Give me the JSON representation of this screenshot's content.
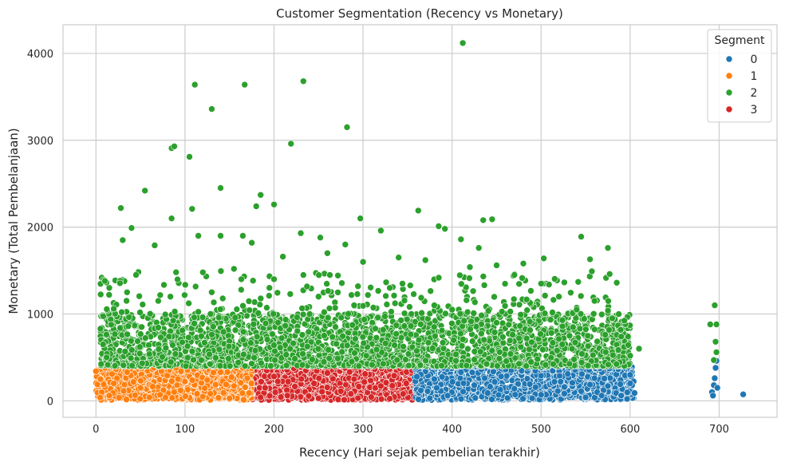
{
  "chart_data": {
    "type": "scatter",
    "title": "Customer Segmentation (Recency vs Monetary)",
    "xlabel": "Recency (Hari sejak pembelian terakhir)",
    "ylabel": "Monetary (Total Pembelanjaan)",
    "xlim": [
      -37,
      765
    ],
    "ylim": [
      -190,
      4330
    ],
    "x_ticks": [
      0,
      100,
      200,
      300,
      400,
      500,
      600,
      700
    ],
    "y_ticks": [
      0,
      1000,
      2000,
      3000,
      4000
    ],
    "grid": true,
    "legend": {
      "title": "Segment",
      "placement": "top-right"
    },
    "series": [
      {
        "name": "0",
        "color": "#1f77b4",
        "points": [
          [
            365,
            120
          ],
          [
            380,
            250
          ],
          [
            395,
            60
          ],
          [
            410,
            330
          ],
          [
            425,
            180
          ],
          [
            440,
            90
          ],
          [
            455,
            280
          ],
          [
            470,
            140
          ],
          [
            485,
            380
          ],
          [
            500,
            70
          ],
          [
            515,
            220
          ],
          [
            530,
            310
          ],
          [
            545,
            110
          ],
          [
            560,
            260
          ],
          [
            575,
            170
          ],
          [
            590,
            60
          ],
          [
            600,
            200
          ],
          [
            605,
            90
          ],
          [
            600,
            300
          ],
          [
            570,
            400
          ],
          [
            520,
            420
          ],
          [
            460,
            360
          ],
          [
            430,
            400
          ],
          [
            390,
            380
          ],
          [
            375,
            30
          ],
          [
            490,
            30
          ],
          [
            550,
            40
          ],
          [
            692,
            100
          ],
          [
            694,
            180
          ],
          [
            695,
            260
          ],
          [
            696,
            380
          ],
          [
            697,
            460
          ],
          [
            693,
            60
          ],
          [
            698,
            150
          ],
          [
            727,
            75
          ]
        ],
        "clusters": [
          {
            "x_range": [
              358,
              605
            ],
            "y_range": [
              10,
              440
            ],
            "count": 1400
          }
        ]
      },
      {
        "name": "1",
        "color": "#ff7f0e",
        "points": [
          [
            0,
            340
          ],
          [
            5,
            250
          ],
          [
            10,
            380
          ],
          [
            20,
            200
          ],
          [
            35,
            330
          ],
          [
            50,
            150
          ],
          [
            65,
            380
          ],
          [
            80,
            290
          ],
          [
            95,
            120
          ],
          [
            110,
            360
          ],
          [
            125,
            240
          ],
          [
            140,
            330
          ],
          [
            155,
            170
          ],
          [
            165,
            380
          ],
          [
            170,
            260
          ],
          [
            172,
            90
          ],
          [
            15,
            60
          ],
          [
            60,
            40
          ],
          [
            120,
            50
          ],
          [
            150,
            30
          ]
        ],
        "clusters": [
          {
            "x_range": [
              0,
              175
            ],
            "y_range": [
              10,
              400
            ],
            "count": 1200
          }
        ]
      },
      {
        "name": "2",
        "color": "#2ca02c",
        "points": [
          [
            412,
            4120
          ],
          [
            111,
            3640
          ],
          [
            167,
            3640
          ],
          [
            233,
            3680
          ],
          [
            130,
            3360
          ],
          [
            282,
            3150
          ],
          [
            85,
            2910
          ],
          [
            88,
            2930
          ],
          [
            105,
            2810
          ],
          [
            219,
            2960
          ],
          [
            140,
            2450
          ],
          [
            55,
            2420
          ],
          [
            185,
            2370
          ],
          [
            297,
            2100
          ],
          [
            362,
            2190
          ],
          [
            200,
            2260
          ],
          [
            180,
            2240
          ],
          [
            28,
            2220
          ],
          [
            108,
            2210
          ],
          [
            85,
            2100
          ],
          [
            435,
            2080
          ],
          [
            445,
            2090
          ],
          [
            385,
            2010
          ],
          [
            392,
            1980
          ],
          [
            320,
            1960
          ],
          [
            230,
            1930
          ],
          [
            140,
            1900
          ],
          [
            165,
            1900
          ],
          [
            410,
            1860
          ],
          [
            545,
            1890
          ],
          [
            30,
            1850
          ],
          [
            66,
            1790
          ],
          [
            115,
            1900
          ],
          [
            175,
            1820
          ],
          [
            280,
            1800
          ],
          [
            575,
            1760
          ],
          [
            40,
            1990
          ],
          [
            252,
            1880
          ],
          [
            430,
            1760
          ],
          [
            503,
            1640
          ],
          [
            555,
            1630
          ],
          [
            450,
            1560
          ],
          [
            480,
            1580
          ],
          [
            420,
            1540
          ],
          [
            370,
            1620
          ],
          [
            340,
            1650
          ],
          [
            300,
            1600
          ],
          [
            260,
            1700
          ],
          [
            210,
            1660
          ],
          [
            155,
            1520
          ],
          [
            90,
            1480
          ],
          [
            45,
            1450
          ],
          [
            10,
            1380
          ],
          [
            15,
            1300
          ],
          [
            20,
            1060
          ],
          [
            577,
            1460
          ],
          [
            585,
            1360
          ],
          [
            690,
            880
          ],
          [
            697,
            880
          ],
          [
            695,
            1100
          ],
          [
            696,
            680
          ],
          [
            697,
            560
          ],
          [
            694,
            470
          ],
          [
            600,
            520
          ],
          [
            610,
            600
          ],
          [
            590,
            740
          ],
          [
            580,
            950
          ],
          [
            560,
            1150
          ],
          [
            540,
            1050
          ],
          [
            520,
            1200
          ],
          [
            500,
            1350
          ],
          [
            470,
            1450
          ],
          [
            400,
            1050
          ],
          [
            330,
            1300
          ],
          [
            250,
            1200
          ],
          [
            200,
            1400
          ],
          [
            130,
            1250
          ],
          [
            70,
            1150
          ],
          [
            35,
            1250
          ],
          [
            5,
            830
          ],
          [
            8,
            650
          ],
          [
            12,
            500
          ],
          [
            450,
            900
          ],
          [
            380,
            1100
          ],
          [
            290,
            1100
          ],
          [
            240,
            1000
          ]
        ],
        "clusters": [
          {
            "x_range": [
              5,
              600
            ],
            "y_range": [
              400,
              1000
            ],
            "count": 2600
          },
          {
            "x_range": [
              5,
              580
            ],
            "y_range": [
              1000,
              1500
            ],
            "count": 220
          }
        ]
      },
      {
        "name": "3",
        "color": "#d62728",
        "points": [
          [
            178,
            350
          ],
          [
            190,
            150
          ],
          [
            200,
            280
          ],
          [
            215,
            60
          ],
          [
            230,
            390
          ],
          [
            245,
            200
          ],
          [
            260,
            320
          ],
          [
            275,
            110
          ],
          [
            290,
            250
          ],
          [
            305,
            380
          ],
          [
            320,
            170
          ],
          [
            335,
            290
          ],
          [
            345,
            80
          ],
          [
            355,
            350
          ],
          [
            358,
            200
          ],
          [
            185,
            40
          ],
          [
            250,
            30
          ],
          [
            330,
            25
          ]
        ],
        "clusters": [
          {
            "x_range": [
              175,
              358
            ],
            "y_range": [
              10,
              400
            ],
            "count": 1100
          }
        ]
      }
    ]
  }
}
